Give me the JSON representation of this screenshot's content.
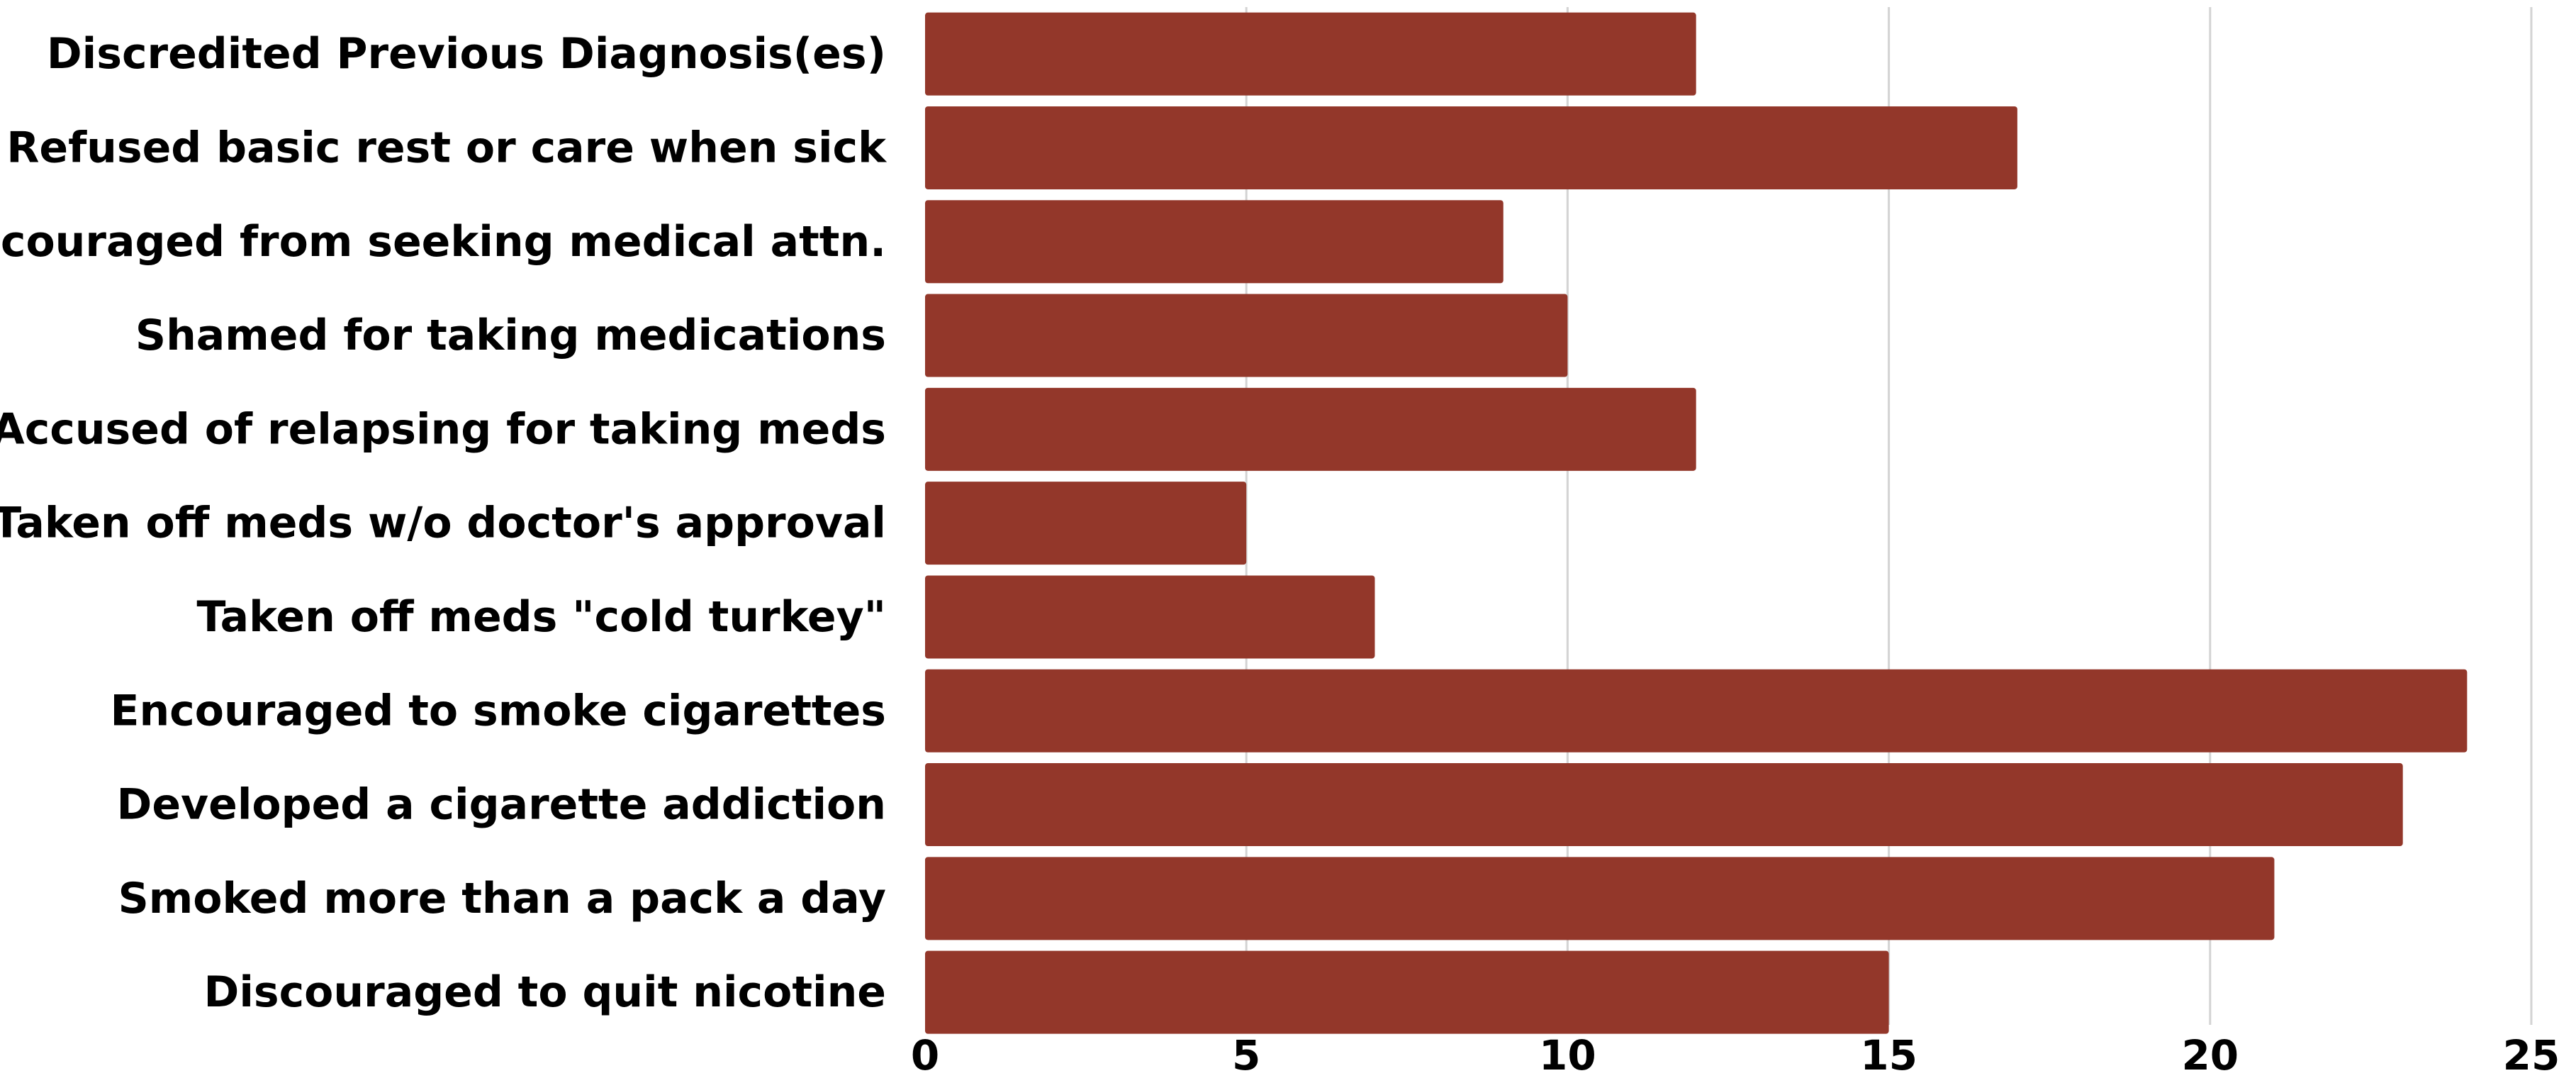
{
  "chart_data": {
    "type": "bar",
    "orientation": "horizontal",
    "title": "",
    "xlabel": "",
    "ylabel": "",
    "categories": [
      "Discredited Previous Diagnosis(es)",
      "Refused basic rest or care when sick",
      "Discouraged from seeking medical attn.",
      "Shamed for taking medications",
      "Accused of relapsing for taking meds",
      "Taken off meds w/o doctor's approval",
      "Taken off meds \"cold turkey\"",
      "Encouraged to smoke cigarettes",
      "Developed a cigarette addiction",
      "Smoked more than a pack a day",
      "Discouraged to quit nicotine"
    ],
    "values": [
      12,
      17,
      9,
      10,
      12,
      5,
      7,
      24,
      23,
      21,
      15
    ],
    "xlim": [
      0,
      25
    ],
    "x_ticks": [
      0,
      5,
      10,
      15,
      20,
      25
    ],
    "grid": "vertical",
    "legend": "none",
    "bar_color": "#93372a",
    "grid_color": "#d3d3d3"
  }
}
